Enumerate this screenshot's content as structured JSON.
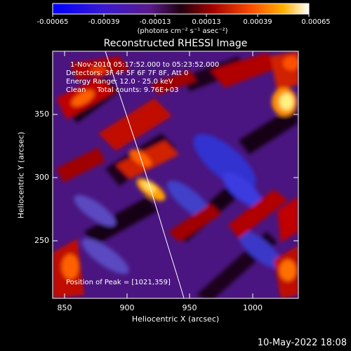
{
  "colorbar": {
    "tick_labels": [
      "-0.00065",
      "-0.00039",
      "-0.00013",
      "0.00013",
      "0.00039",
      "0.00065"
    ],
    "units": "(photons cm⁻² s⁻¹ asec⁻²)"
  },
  "plot": {
    "title": "Reconstructed RHESSI Image",
    "xlabel": "Heliocentric X (arcsec)",
    "ylabel": "Heliocentric Y (arcsec)",
    "x_ticks": [
      "850",
      "900",
      "950",
      "1000"
    ],
    "y_ticks": [
      "250",
      "300",
      "350"
    ]
  },
  "annotations": {
    "time_range": "1-Nov-2010 05:17:52.000 to 05:23:52.000",
    "detectors": "Detectors: 3F 4F 5F 6F 7F 8F, Att 0",
    "energy_range": "Energy Range: 12.0 - 25.0 keV",
    "clean_counts": "Clean     Total counts: 9.76E+03",
    "peak_position": "Position of Peak = [1021,359]"
  },
  "footer": {
    "timestamp": "10-May-2022 18:08"
  },
  "chart_data": {
    "type": "heatmap",
    "title": "Reconstructed RHESSI Image",
    "xlabel": "Heliocentric X (arcsec)",
    "ylabel": "Heliocentric Y (arcsec)",
    "xlim": [
      840,
      1035
    ],
    "ylim": [
      202,
      390
    ],
    "colorbar_range": [
      -0.00065,
      0.00065
    ],
    "colormap": "blue-purple-red-orange-yellow-white",
    "peak": [
      1021,
      359
    ],
    "limb_curve_x_at_y": [
      [
        880,
        390
      ],
      [
        900,
        330
      ],
      [
        920,
        270
      ],
      [
        935,
        230
      ],
      [
        943,
        202
      ]
    ]
  }
}
